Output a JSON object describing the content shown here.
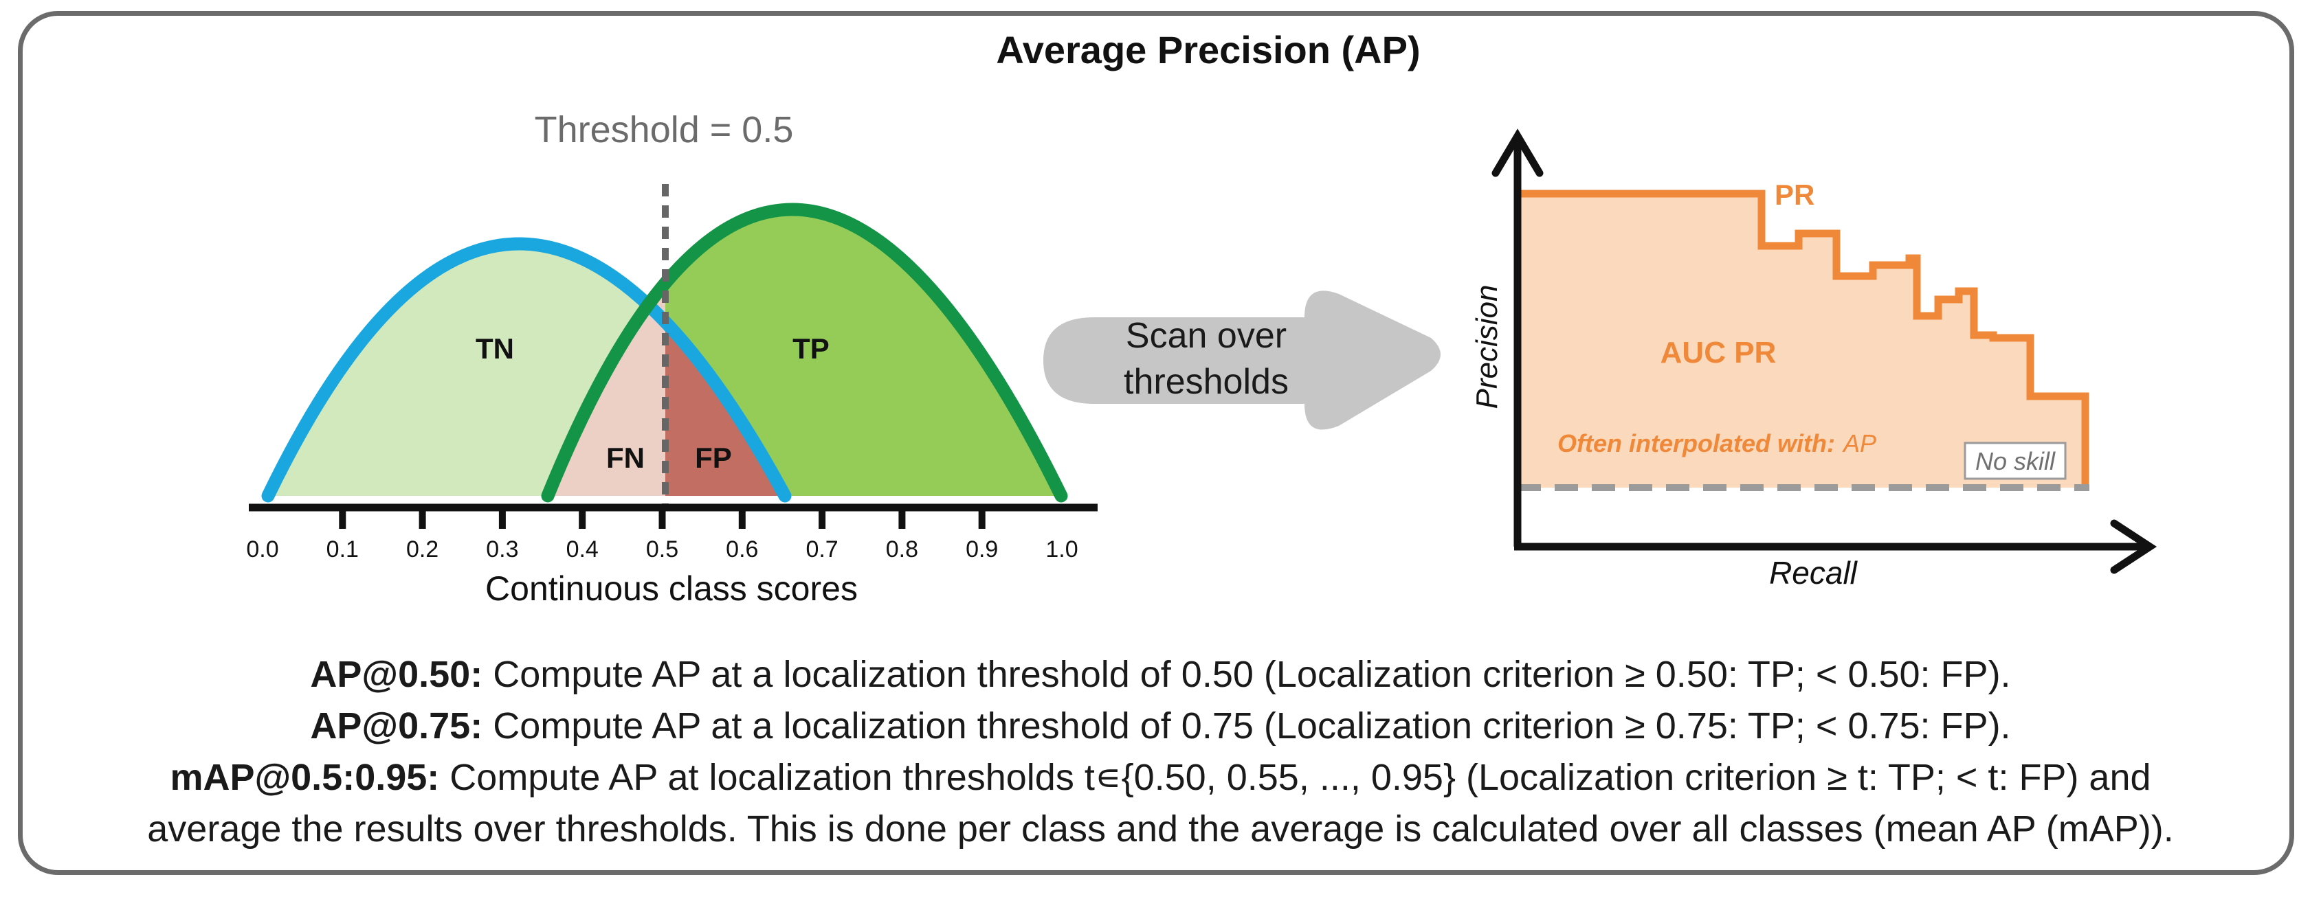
{
  "title": "Average Precision (AP)",
  "distribution_panel": {
    "threshold_label": "Threshold = 0.5",
    "regions": {
      "tn": "TN",
      "tp": "TP",
      "fn": "FN",
      "fp": "FP"
    },
    "axis_ticks": [
      "0.0",
      "0.1",
      "0.2",
      "0.3",
      "0.4",
      "0.5",
      "0.6",
      "0.7",
      "0.8",
      "0.9",
      "1.0"
    ],
    "axis_label": "Continuous class scores",
    "colors": {
      "negative_curve": "#1aa7e0",
      "negative_fill": "#d2e8bd",
      "positive_curve": "#139447",
      "positive_fill": "#95cc58",
      "fn_fill": "#ecd0c6",
      "fp_fill": "#c36e63",
      "threshold_line": "#666666"
    }
  },
  "arrow": {
    "line1": "Scan over",
    "line2": "thresholds",
    "color": "#c6c6c6"
  },
  "pr_panel": {
    "curve_label": "PR",
    "area_label": "AUC PR",
    "note_prefix": "Often interpolated with:",
    "note_suffix": "AP",
    "baseline_label": "No skill",
    "x_axis_label": "Recall",
    "y_axis_label": "Precision",
    "colors": {
      "curve": "#f0883a",
      "fill": "#fbd9bd",
      "text": "#f0883a",
      "baseline": "#9b9b9b"
    }
  },
  "captions": [
    {
      "bold": "AP@0.50:",
      "text": " Compute AP at a localization threshold of 0.50 (Localization criterion ≥ 0.50: TP; < 0.50: FP)."
    },
    {
      "bold": "AP@0.75:",
      "text": " Compute AP at a localization threshold of 0.75 (Localization criterion ≥ 0.75: TP; < 0.75: FP)."
    },
    {
      "bold": "mAP@0.5:0.95:",
      "text": " Compute AP at localization thresholds t∊{0.50, 0.55, ..., 0.95} (Localization criterion ≥ t: TP; < t: FP) and"
    },
    {
      "bold": "",
      "text": "average the results over thresholds. This is done per class and the average is calculated over all classes (mean AP (mAP))."
    }
  ]
}
